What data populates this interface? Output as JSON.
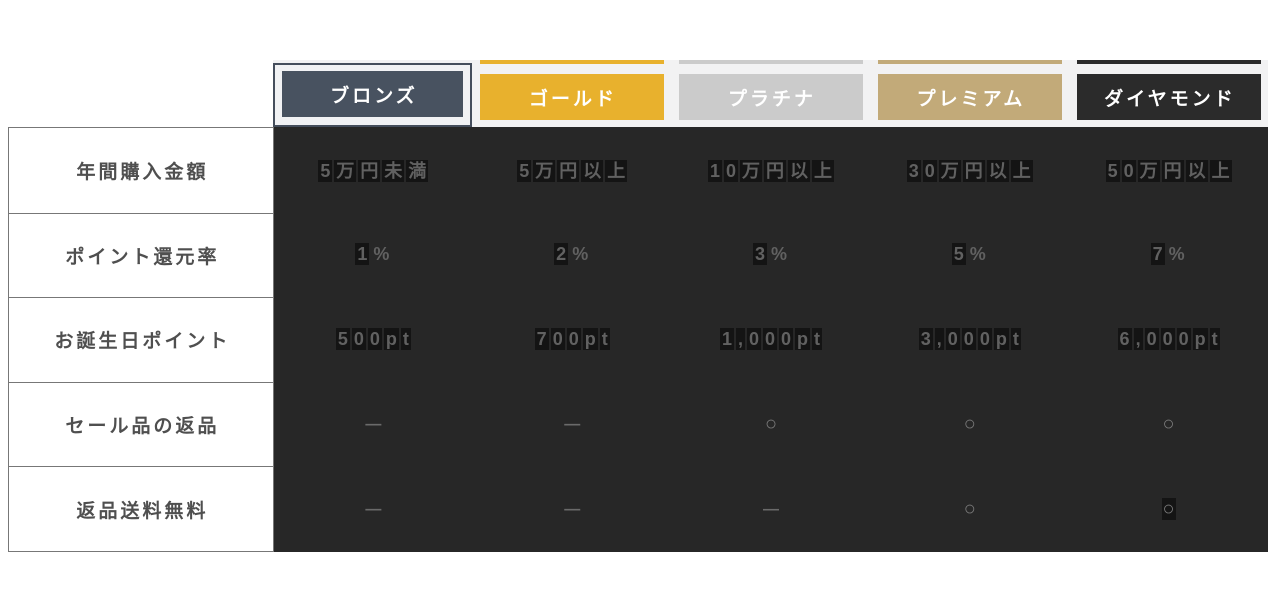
{
  "chart_data": {
    "type": "table",
    "columns": [
      "ブロンズ",
      "ゴールド",
      "プラチナ",
      "プレミアム",
      "ダイヤモンド"
    ],
    "row_labels": [
      "年間購入金額",
      "ポイント還元率",
      "お誕生日ポイント",
      "セール品の返品",
      "返品送料無料"
    ],
    "rows": [
      [
        "5万円未満",
        "5万円以上",
        "10万円以上",
        "30万円以上",
        "50万円以上"
      ],
      [
        "1%",
        "2%",
        "3%",
        "5%",
        "7%"
      ],
      [
        "500pt",
        "700pt",
        "1,000pt",
        "3,000pt",
        "6,000pt"
      ],
      [
        "—",
        "—",
        "○",
        "○",
        "○"
      ],
      [
        "—",
        "—",
        "—",
        "○",
        "○"
      ]
    ],
    "legend_position": "none",
    "grid": "table-borders-on-label-column-only",
    "selected_column": "ブロンズ"
  },
  "tiers": [
    {
      "label": "ブロンズ",
      "color": "#485260",
      "text_color": "#ffffff",
      "selected": true
    },
    {
      "label": "ゴールド",
      "color": "#e8b12d",
      "text_color": "#ffffff",
      "selected": false
    },
    {
      "label": "プラチナ",
      "color": "#cbcbcb",
      "text_color": "#ffffff",
      "selected": false
    },
    {
      "label": "プレミアム",
      "color": "#c2aa79",
      "text_color": "#ffffff",
      "selected": false
    },
    {
      "label": "ダイヤモンド",
      "color": "#2b2b2b",
      "text_color": "#ffffff",
      "selected": false
    }
  ],
  "colors": {
    "page_background": "#ffffff",
    "body_background": "#272727",
    "value_text": "#616161",
    "value_highlight_box": "#141414",
    "mark_text": "#7a7a7a",
    "label_text": "#4f4f4f",
    "label_border": "#777777",
    "header_band_background": "#f2f2f3",
    "selected_frame_border": "#454e5c"
  }
}
